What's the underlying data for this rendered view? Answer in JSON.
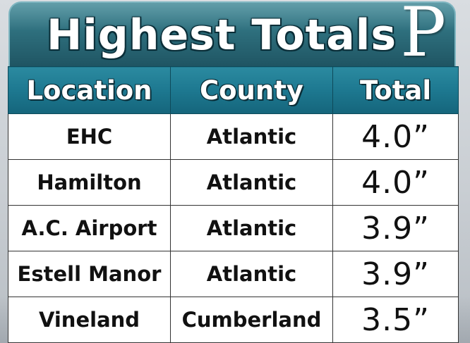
{
  "title": "Highest Totals",
  "logo_letter": "P",
  "colors": {
    "banner": "#2e6f7d",
    "header": "#1d7890",
    "cell_background": "#ffffff",
    "text": "#111111"
  },
  "table": {
    "headers": [
      "Location",
      "County",
      "Total"
    ],
    "rows": [
      {
        "location": "EHC",
        "county": "Atlantic",
        "total": "4.0”"
      },
      {
        "location": "Hamilton",
        "county": "Atlantic",
        "total": "4.0”"
      },
      {
        "location": "A.C. Airport",
        "county": "Atlantic",
        "total": "3.9”"
      },
      {
        "location": "Estell Manor",
        "county": "Atlantic",
        "total": "3.9”"
      },
      {
        "location": "Vineland",
        "county": "Cumberland",
        "total": "3.5”"
      }
    ]
  }
}
